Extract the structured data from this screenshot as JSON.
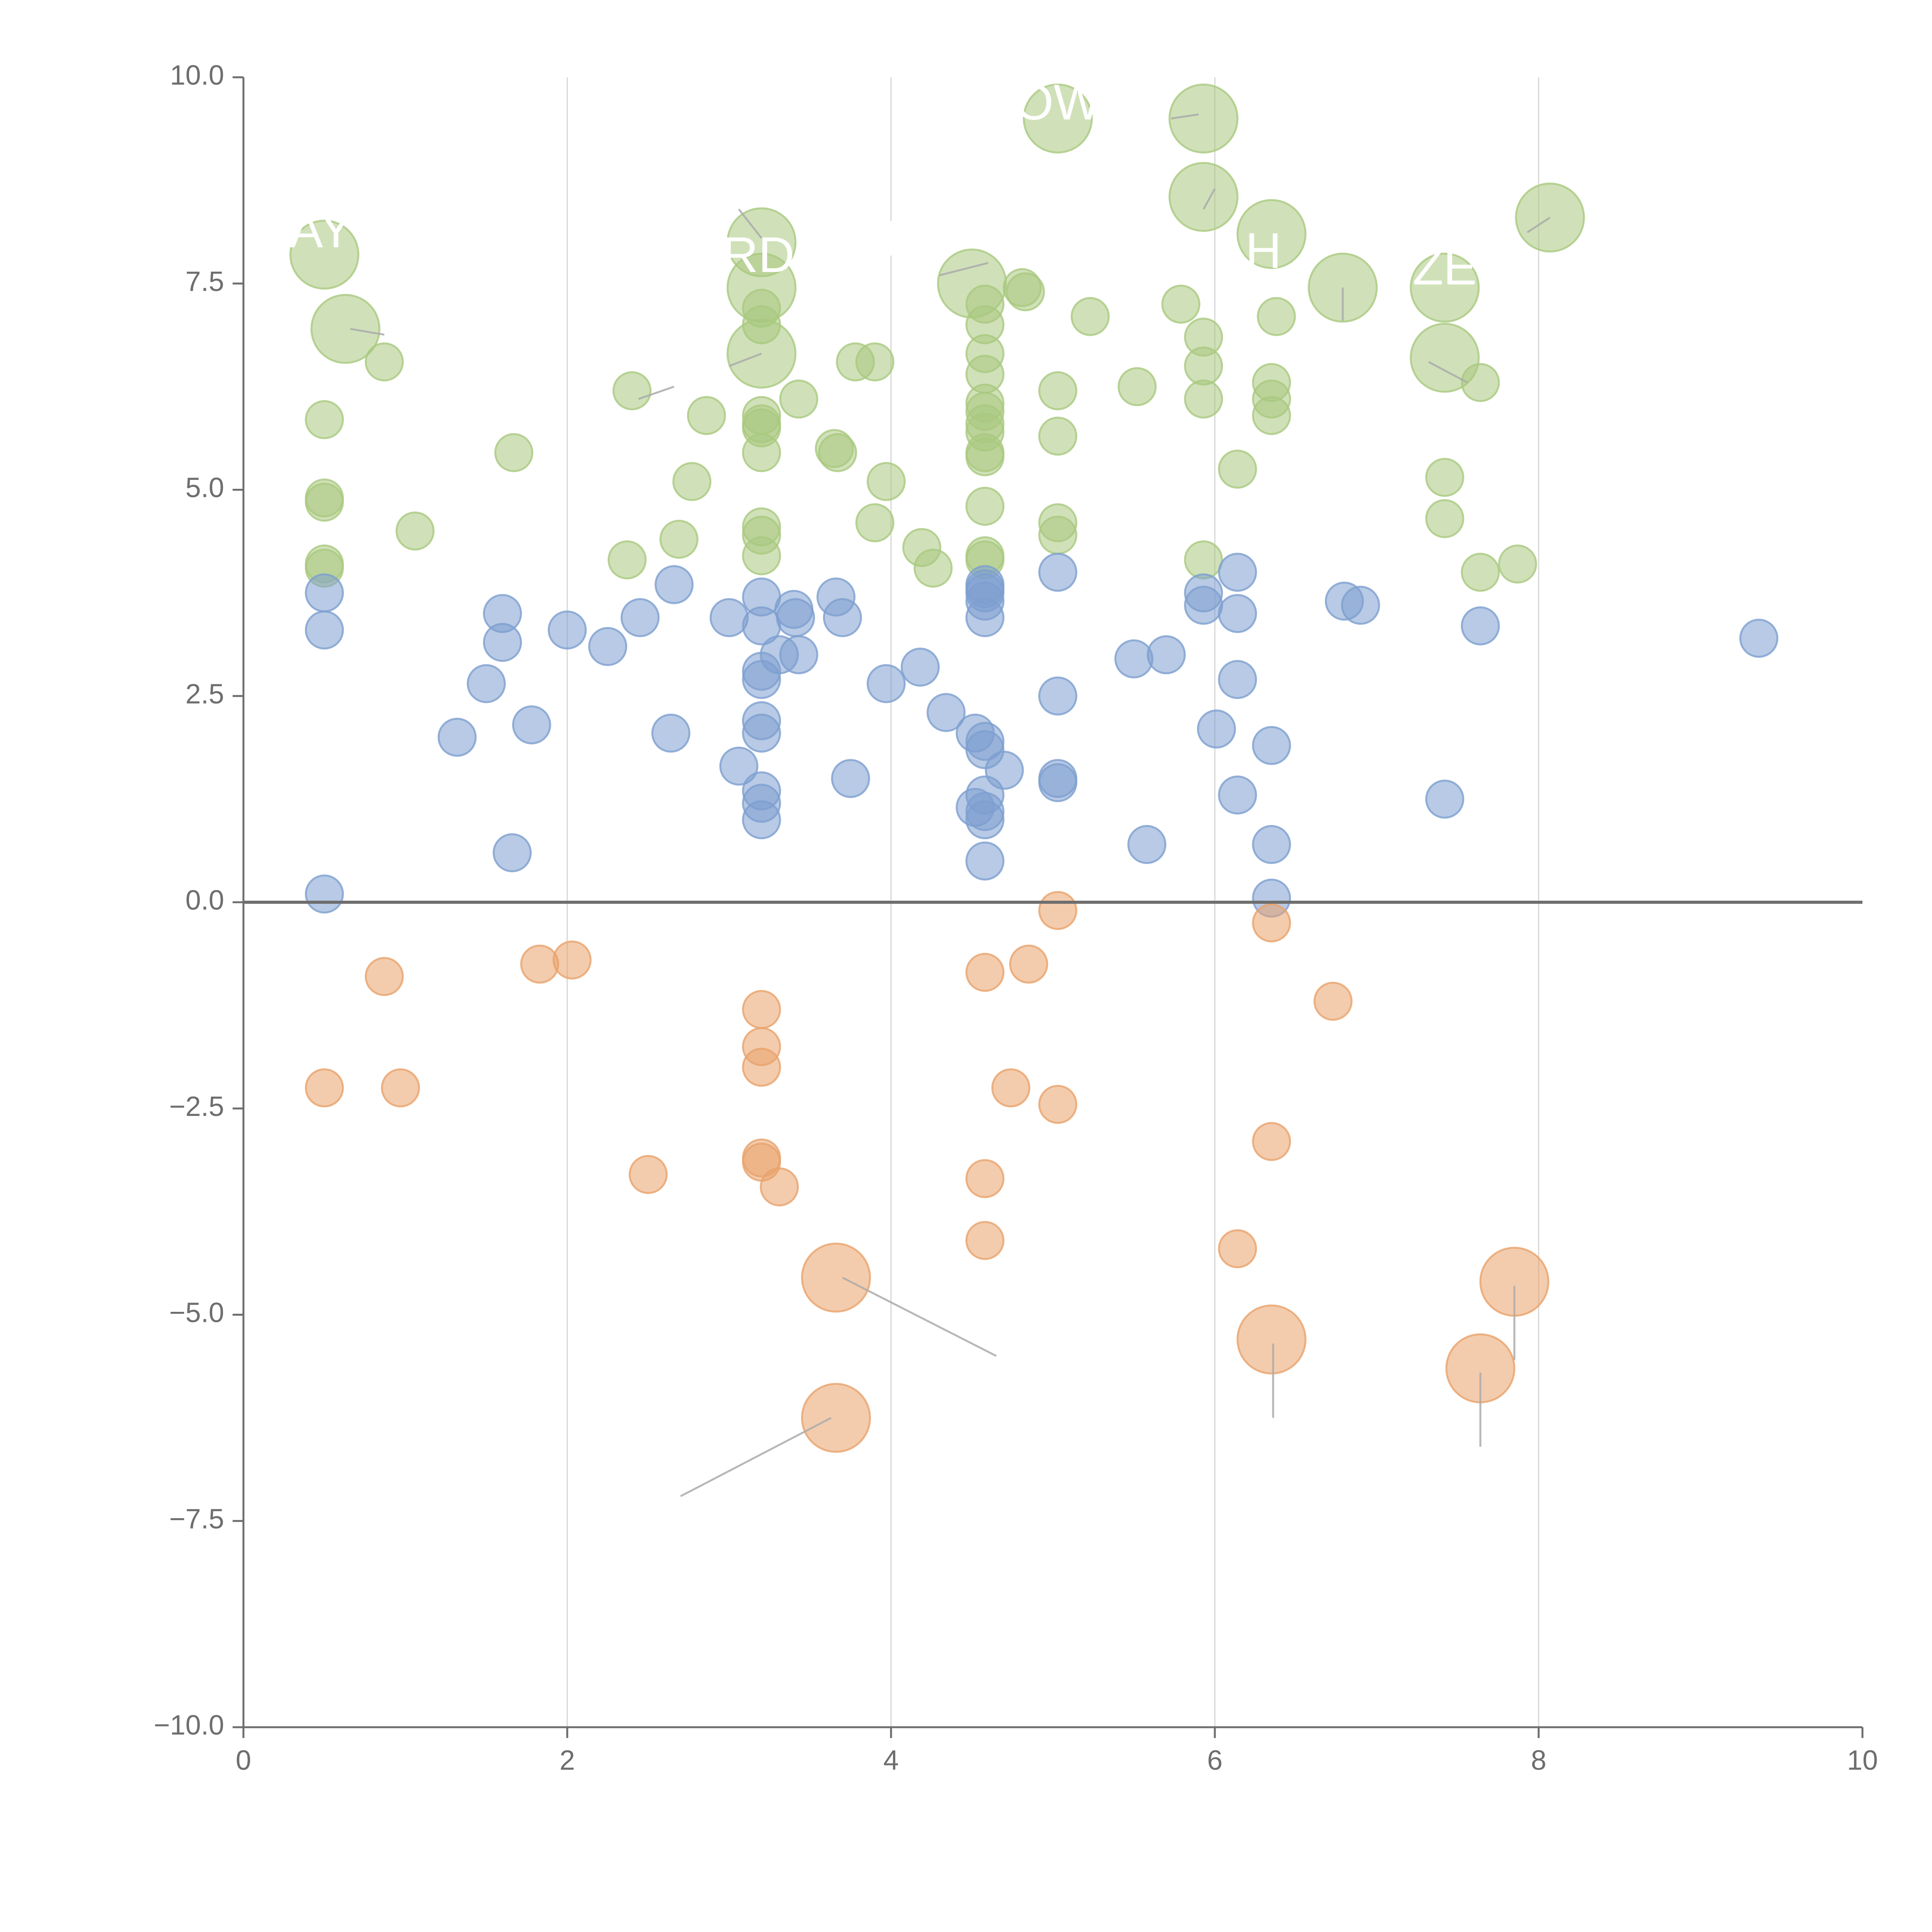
{
  "colors": {
    "positive_upper": "#a9c97f",
    "positive_lower": "#7d9fd0",
    "negative": "#e9a26b",
    "axis": "#6e6e6e",
    "gridline": "#d6d6d6",
    "zero_line": "#6e6e6e",
    "leader_line": "#aaaaaa",
    "label_text": "#ffffff"
  },
  "chart_data": {
    "type": "scatter",
    "title": "",
    "xlabel": "",
    "ylabel": "",
    "xlim": [
      0,
      10
    ],
    "ylim": [
      -10,
      10
    ],
    "x_ticks": [
      0,
      2,
      4,
      6,
      8,
      10
    ],
    "x_tick_labels": [
      "0",
      "2",
      "4",
      "6",
      "8",
      "10"
    ],
    "y_ticks": [
      10,
      7.5,
      5,
      2.5,
      0,
      -2.5,
      -5,
      -7.5,
      -10
    ],
    "y_tick_labels": [
      "10.0",
      "7.5",
      "5.0",
      "2.5",
      "0.0",
      "−2.5",
      "−5.0",
      "−7.5",
      "−10.0"
    ],
    "vertical_grid_at": [
      2,
      4,
      6,
      8
    ],
    "reference_line_y": 0,
    "series": [
      {
        "name": "upper",
        "points": [
          [
            0.5,
            7.85,
            2
          ],
          [
            0.63,
            6.95,
            2
          ],
          [
            0.87,
            6.55,
            0
          ],
          [
            0.5,
            5.85,
            0
          ],
          [
            0.5,
            4.9,
            0
          ],
          [
            0.5,
            4.85,
            0
          ],
          [
            0.5,
            4.1,
            0
          ],
          [
            0.5,
            4.05,
            0
          ],
          [
            1.06,
            4.5,
            0
          ],
          [
            1.67,
            5.45,
            0
          ],
          [
            2.4,
            6.2,
            0
          ],
          [
            2.37,
            4.15,
            0
          ],
          [
            2.69,
            4.4,
            0
          ],
          [
            2.77,
            5.1,
            0
          ],
          [
            2.86,
            5.9,
            0
          ],
          [
            3.2,
            8.0,
            2
          ],
          [
            3.2,
            7.45,
            2
          ],
          [
            3.2,
            6.65,
            2
          ],
          [
            3.2,
            7.2,
            0
          ],
          [
            3.2,
            7.0,
            0
          ],
          [
            3.2,
            5.9,
            0
          ],
          [
            3.2,
            5.8,
            0
          ],
          [
            3.2,
            5.75,
            0
          ],
          [
            3.2,
            5.45,
            0
          ],
          [
            3.2,
            4.55,
            0
          ],
          [
            3.2,
            4.45,
            0
          ],
          [
            3.2,
            4.2,
            0
          ],
          [
            3.43,
            6.1,
            0
          ],
          [
            3.65,
            5.5,
            0
          ],
          [
            3.67,
            5.45,
            0
          ],
          [
            3.78,
            6.55,
            0
          ],
          [
            3.9,
            6.55,
            0
          ],
          [
            3.9,
            4.6,
            0
          ],
          [
            3.97,
            5.1,
            0
          ],
          [
            4.19,
            4.3,
            0
          ],
          [
            4.26,
            4.05,
            0
          ],
          [
            4.5,
            7.5,
            2
          ],
          [
            4.58,
            7.25,
            0
          ],
          [
            4.58,
            7.0,
            0
          ],
          [
            4.58,
            6.65,
            0
          ],
          [
            4.58,
            6.4,
            0
          ],
          [
            4.58,
            6.05,
            0
          ],
          [
            4.58,
            5.95,
            0
          ],
          [
            4.58,
            5.8,
            0
          ],
          [
            4.58,
            5.7,
            0
          ],
          [
            4.58,
            5.45,
            0
          ],
          [
            4.58,
            5.4,
            0
          ],
          [
            4.58,
            4.8,
            0
          ],
          [
            4.58,
            4.2,
            0
          ],
          [
            4.58,
            4.15,
            0
          ],
          [
            4.81,
            7.45,
            0
          ],
          [
            4.83,
            7.4,
            0
          ],
          [
            5.03,
            9.5,
            2
          ],
          [
            5.03,
            6.2,
            0
          ],
          [
            5.03,
            5.65,
            0
          ],
          [
            5.03,
            4.6,
            0
          ],
          [
            5.03,
            4.45,
            0
          ],
          [
            5.23,
            7.1,
            0
          ],
          [
            5.52,
            6.25,
            0
          ],
          [
            5.79,
            7.25,
            0
          ],
          [
            5.93,
            9.5,
            2
          ],
          [
            5.93,
            8.55,
            2
          ],
          [
            5.93,
            6.85,
            0
          ],
          [
            5.93,
            6.5,
            0
          ],
          [
            5.93,
            6.1,
            0
          ],
          [
            5.93,
            4.15,
            0
          ],
          [
            6.14,
            5.25,
            0
          ],
          [
            6.35,
            8.1,
            2
          ],
          [
            6.35,
            6.3,
            0
          ],
          [
            6.35,
            6.1,
            0
          ],
          [
            6.35,
            5.9,
            0
          ],
          [
            6.38,
            7.1,
            0
          ],
          [
            6.79,
            7.45,
            2
          ],
          [
            8.07,
            8.3,
            2
          ],
          [
            7.42,
            7.45,
            2
          ],
          [
            7.42,
            6.6,
            2
          ],
          [
            7.42,
            5.15,
            0
          ],
          [
            7.42,
            4.65,
            0
          ],
          [
            7.64,
            6.3,
            0
          ],
          [
            7.64,
            4.0,
            0
          ],
          [
            7.87,
            4.1,
            0
          ]
        ]
      },
      {
        "name": "lower",
        "points": [
          [
            0.5,
            3.75,
            0
          ],
          [
            0.5,
            3.3,
            0
          ],
          [
            0.5,
            0.1,
            0
          ],
          [
            1.32,
            2.0,
            0
          ],
          [
            1.5,
            2.65,
            0
          ],
          [
            1.6,
            3.5,
            0
          ],
          [
            1.6,
            3.15,
            0
          ],
          [
            1.66,
            0.6,
            0
          ],
          [
            1.78,
            2.15,
            0
          ],
          [
            2.0,
            3.3,
            0
          ],
          [
            2.25,
            3.1,
            0
          ],
          [
            2.45,
            3.45,
            0
          ],
          [
            2.64,
            2.05,
            0
          ],
          [
            2.66,
            3.85,
            0
          ],
          [
            3.0,
            3.45,
            0
          ],
          [
            3.06,
            1.65,
            0
          ],
          [
            3.2,
            3.7,
            0
          ],
          [
            3.2,
            3.35,
            0
          ],
          [
            3.2,
            2.8,
            0
          ],
          [
            3.2,
            2.7,
            0
          ],
          [
            3.2,
            2.2,
            0
          ],
          [
            3.2,
            2.05,
            0
          ],
          [
            3.2,
            1.35,
            0
          ],
          [
            3.2,
            1.2,
            0
          ],
          [
            3.2,
            1.0,
            0
          ],
          [
            3.31,
            3.0,
            0
          ],
          [
            3.4,
            3.55,
            0
          ],
          [
            3.41,
            3.45,
            0
          ],
          [
            3.43,
            3.0,
            0
          ],
          [
            3.66,
            3.7,
            0
          ],
          [
            3.7,
            3.45,
            0
          ],
          [
            3.75,
            1.5,
            0
          ],
          [
            3.97,
            2.65,
            0
          ],
          [
            4.18,
            2.85,
            0
          ],
          [
            4.34,
            2.3,
            0
          ],
          [
            4.52,
            2.05,
            0
          ],
          [
            4.52,
            1.15,
            0
          ],
          [
            4.58,
            3.85,
            0
          ],
          [
            4.58,
            3.8,
            0
          ],
          [
            4.58,
            3.75,
            0
          ],
          [
            4.58,
            3.65,
            0
          ],
          [
            4.58,
            3.45,
            0
          ],
          [
            4.58,
            1.95,
            0
          ],
          [
            4.58,
            1.85,
            0
          ],
          [
            4.58,
            1.3,
            0
          ],
          [
            4.58,
            1.1,
            0
          ],
          [
            4.58,
            1.0,
            0
          ],
          [
            4.58,
            0.5,
            0
          ],
          [
            4.7,
            1.6,
            0
          ],
          [
            5.03,
            4.0,
            0
          ],
          [
            5.03,
            2.5,
            0
          ],
          [
            5.03,
            1.5,
            0
          ],
          [
            5.03,
            1.45,
            0
          ],
          [
            5.5,
            2.95,
            0
          ],
          [
            5.58,
            0.7,
            0
          ],
          [
            5.7,
            3.0,
            0
          ],
          [
            5.93,
            3.75,
            0
          ],
          [
            5.93,
            3.6,
            0
          ],
          [
            6.01,
            2.1,
            0
          ],
          [
            6.14,
            4.0,
            0
          ],
          [
            6.14,
            3.5,
            0
          ],
          [
            6.14,
            2.7,
            0
          ],
          [
            6.14,
            1.3,
            0
          ],
          [
            6.35,
            1.9,
            0
          ],
          [
            6.35,
            0.7,
            0
          ],
          [
            6.35,
            0.05,
            0
          ],
          [
            6.8,
            3.65,
            0
          ],
          [
            6.9,
            3.6,
            0
          ],
          [
            7.42,
            1.25,
            0
          ],
          [
            7.64,
            3.35,
            0
          ],
          [
            9.36,
            3.2,
            0
          ]
        ]
      },
      {
        "name": "negative",
        "points": [
          [
            0.5,
            -2.25,
            0
          ],
          [
            0.87,
            -0.9,
            0
          ],
          [
            0.97,
            -2.25,
            0
          ],
          [
            1.83,
            -0.75,
            0
          ],
          [
            2.03,
            -0.7,
            0
          ],
          [
            2.5,
            -3.3,
            0
          ],
          [
            3.2,
            -1.3,
            0
          ],
          [
            3.2,
            -1.75,
            0
          ],
          [
            3.2,
            -2.0,
            0
          ],
          [
            3.2,
            -3.1,
            0
          ],
          [
            3.2,
            -3.15,
            0
          ],
          [
            3.31,
            -3.45,
            0
          ],
          [
            3.66,
            -4.55,
            2
          ],
          [
            3.66,
            -6.25,
            2
          ],
          [
            4.58,
            -0.85,
            0
          ],
          [
            4.58,
            -3.35,
            0
          ],
          [
            4.58,
            -4.1,
            0
          ],
          [
            4.74,
            -2.25,
            0
          ],
          [
            4.85,
            -0.75,
            0
          ],
          [
            5.03,
            -0.1,
            0
          ],
          [
            5.03,
            -2.45,
            0
          ],
          [
            6.14,
            -4.2,
            0
          ],
          [
            6.35,
            -0.25,
            0
          ],
          [
            6.35,
            -2.9,
            0
          ],
          [
            6.35,
            -5.3,
            2
          ],
          [
            6.73,
            -1.2,
            0
          ],
          [
            7.64,
            -5.65,
            2
          ],
          [
            7.85,
            -4.6,
            2
          ]
        ]
      }
    ],
    "annotations": [
      {
        "text": "AY",
        "x": 0.48,
        "y": 8.1,
        "line": [
          [
            0.66,
            6.95
          ],
          [
            0.87,
            6.88
          ]
        ]
      },
      {
        "text": "RD",
        "x": 3.18,
        "y": 7.8,
        "line": [
          [
            2.44,
            6.1
          ],
          [
            2.66,
            6.25
          ]
        ]
      },
      {
        "text": "E",
        "x": 4.06,
        "y": 8.0,
        "line": [
          [
            4.6,
            7.75
          ],
          [
            4.3,
            7.6
          ]
        ]
      },
      {
        "text": "OW",
        "x": 5.03,
        "y": 9.65,
        "line": [
          [
            5.9,
            9.55
          ],
          [
            5.73,
            9.5
          ]
        ]
      },
      {
        "text": "H",
        "x": 6.3,
        "y": 7.85,
        "line": [
          [
            6.0,
            8.65
          ],
          [
            5.93,
            8.4
          ]
        ]
      },
      {
        "text": "ZE",
        "x": 7.42,
        "y": 7.65,
        "line": [
          [
            7.32,
            6.55
          ],
          [
            7.56,
            6.3
          ]
        ]
      },
      {
        "text": "",
        "x": 0,
        "y": 0,
        "line": [
          [
            3.7,
            -4.55
          ],
          [
            4.65,
            -5.5
          ]
        ]
      },
      {
        "text": "",
        "x": 0,
        "y": 0,
        "line": [
          [
            3.63,
            -6.25
          ],
          [
            2.7,
            -7.2
          ]
        ]
      },
      {
        "text": "",
        "x": 0,
        "y": 0,
        "line": [
          [
            6.36,
            -5.35
          ],
          [
            6.36,
            -6.25
          ]
        ]
      },
      {
        "text": "",
        "x": 0,
        "y": 0,
        "line": [
          [
            7.64,
            -5.7
          ],
          [
            7.64,
            -6.6
          ]
        ]
      },
      {
        "text": "",
        "x": 0,
        "y": 0,
        "line": [
          [
            7.85,
            -4.65
          ],
          [
            7.85,
            -5.55
          ]
        ]
      },
      {
        "text": "",
        "x": 0,
        "y": 0,
        "line": [
          [
            8.07,
            8.3
          ],
          [
            7.93,
            8.12
          ]
        ]
      },
      {
        "text": "",
        "x": 0,
        "y": 0,
        "line": [
          [
            3.2,
            8.05
          ],
          [
            3.06,
            8.4
          ]
        ]
      },
      {
        "text": "",
        "x": 0,
        "y": 0,
        "line": [
          [
            3.2,
            6.65
          ],
          [
            3.0,
            6.5
          ]
        ]
      },
      {
        "text": "",
        "x": 0,
        "y": 0,
        "line": [
          [
            6.79,
            7.45
          ],
          [
            6.79,
            7.05
          ]
        ]
      }
    ]
  }
}
